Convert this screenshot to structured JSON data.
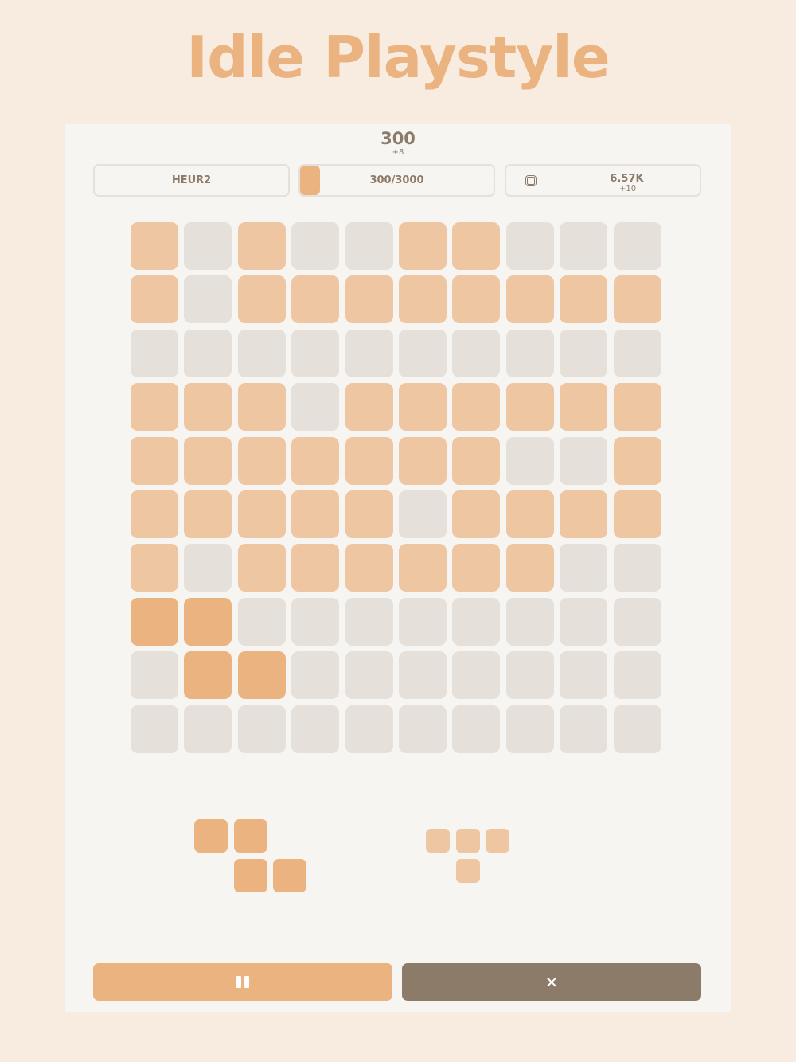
{
  "title": "Idle Playstyle",
  "score": "300",
  "score_delta": "+8",
  "stats": {
    "mode": "HEUR2",
    "progress_text": "300/3000",
    "progress_fraction": 0.1,
    "coins": "6.57K",
    "coins_delta": "+10",
    "coin_icon": "chip-icon"
  },
  "colors": {
    "accent": "#ebb380",
    "filled": "#eec6a2",
    "empty": "#e5e0da",
    "secondary": "#8c7b69"
  },
  "board": [
    "FEFEEFFEEE",
    "FEFFFFFFFF",
    "EEEEEEEEEE",
    "FFFEFFFFFF",
    "FFFFFFFEEF",
    "FFFFFEFFFF",
    "FEFFFFFFEE",
    "DDEEEEEEEE",
    "EDDEEEEEEE",
    "EEEEEEEEEE"
  ],
  "pieces": [
    {
      "cells": [
        [
          0,
          0
        ],
        [
          1,
          0
        ],
        [
          1,
          1
        ],
        [
          2,
          1
        ]
      ],
      "state": "active"
    },
    {
      "cells": [
        [
          0,
          0
        ],
        [
          1,
          0
        ],
        [
          2,
          0
        ],
        [
          1,
          1
        ]
      ],
      "state": "inactive"
    }
  ],
  "buttons": {
    "pause_icon": "pause-icon",
    "close_icon": "close-icon"
  }
}
